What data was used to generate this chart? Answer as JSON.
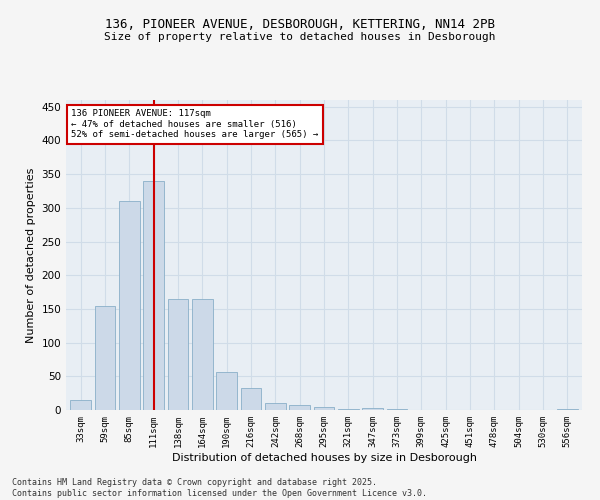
{
  "title_line1": "136, PIONEER AVENUE, DESBOROUGH, KETTERING, NN14 2PB",
  "title_line2": "Size of property relative to detached houses in Desborough",
  "xlabel": "Distribution of detached houses by size in Desborough",
  "ylabel": "Number of detached properties",
  "categories": [
    "33sqm",
    "59sqm",
    "85sqm",
    "111sqm",
    "138sqm",
    "164sqm",
    "190sqm",
    "216sqm",
    "242sqm",
    "268sqm",
    "295sqm",
    "321sqm",
    "347sqm",
    "373sqm",
    "399sqm",
    "425sqm",
    "451sqm",
    "478sqm",
    "504sqm",
    "530sqm",
    "556sqm"
  ],
  "values": [
    15,
    155,
    310,
    340,
    165,
    165,
    57,
    33,
    10,
    7,
    5,
    2,
    3,
    2,
    0,
    0,
    0,
    0,
    0,
    0,
    1
  ],
  "bar_color": "#ccd9e8",
  "bar_edge_color": "#8aafc8",
  "property_line_x": 3,
  "annotation_title": "136 PIONEER AVENUE: 117sqm",
  "annotation_line1": "← 47% of detached houses are smaller (516)",
  "annotation_line2": "52% of semi-detached houses are larger (565) →",
  "annotation_box_color": "#ffffff",
  "annotation_box_edge": "#cc0000",
  "vline_color": "#cc0000",
  "grid_color": "#d0dce8",
  "plot_bg_color": "#e8eef4",
  "fig_bg_color": "#f5f5f5",
  "footer_line1": "Contains HM Land Registry data © Crown copyright and database right 2025.",
  "footer_line2": "Contains public sector information licensed under the Open Government Licence v3.0.",
  "ylim": [
    0,
    460
  ],
  "yticks": [
    0,
    50,
    100,
    150,
    200,
    250,
    300,
    350,
    400,
    450
  ]
}
